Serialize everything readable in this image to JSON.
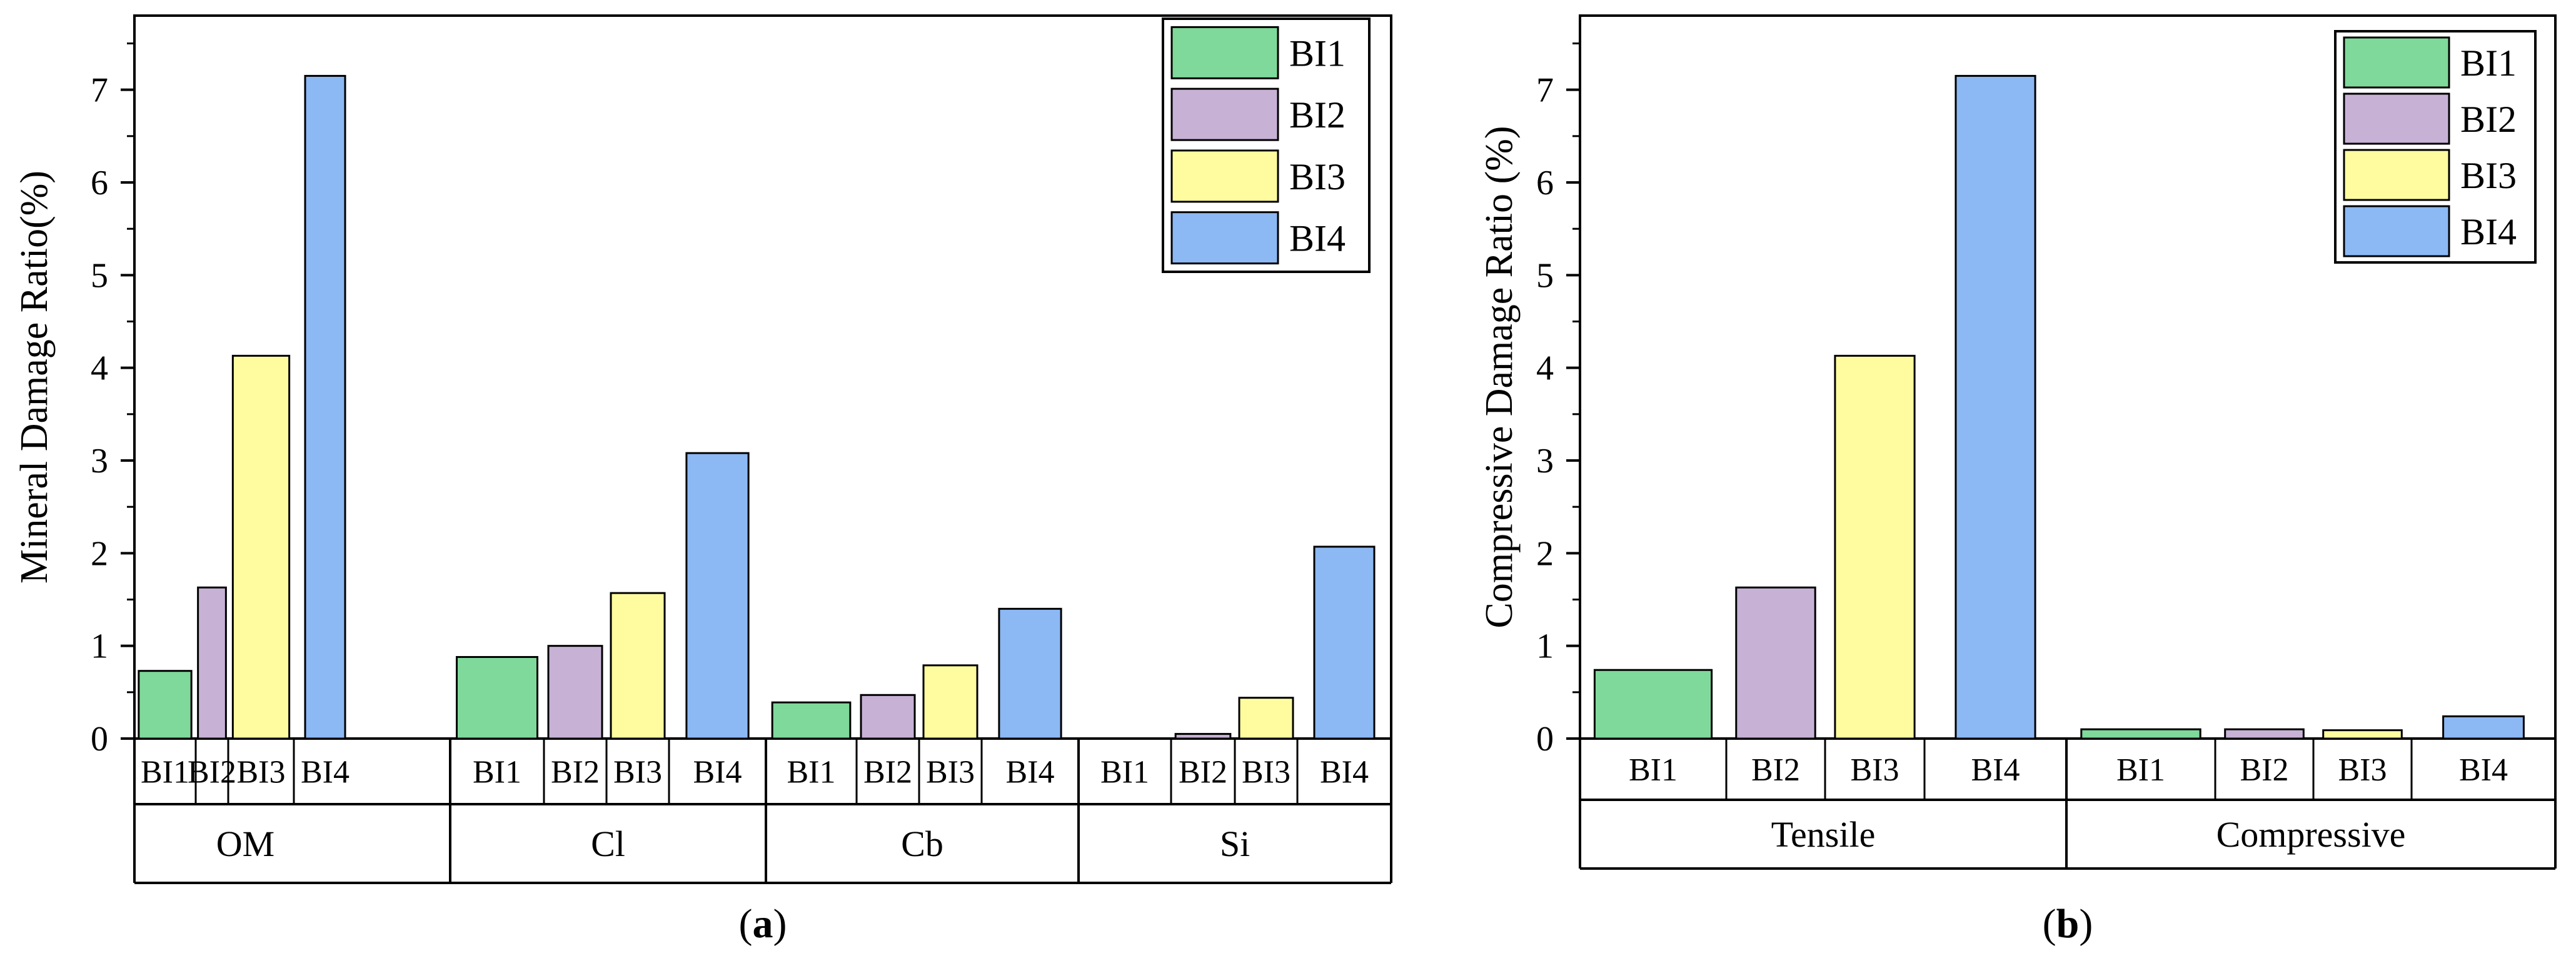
{
  "colors": {
    "BI1": "#7fd99a",
    "BI2": "#c7b2d6",
    "BI3": "#fffca0",
    "BI4": "#8cb8f4",
    "axis": "#000000"
  },
  "chart_data": [
    {
      "type": "bar",
      "panel_label": "(a)",
      "panel_letter": "a",
      "ylabel": "Mineral Damage Ratio(%)",
      "ylim": [
        0,
        7.8
      ],
      "yticks": [
        "0",
        "1",
        "2",
        "3",
        "4",
        "5",
        "6",
        "7"
      ],
      "legend": [
        "BI1",
        "BI2",
        "BI3",
        "BI4"
      ],
      "legend_position": "top-right",
      "groups": [
        {
          "name": "OM",
          "categories": [
            "BI1",
            "BI2",
            "BI3",
            "BI4"
          ],
          "values": [
            0.73,
            1.63,
            4.13,
            7.15
          ]
        },
        {
          "name": "Cl",
          "categories": [
            "BI1",
            "BI2",
            "BI3",
            "BI4"
          ],
          "values": [
            0.88,
            1.0,
            1.57,
            3.08
          ]
        },
        {
          "name": "Cb",
          "categories": [
            "BI1",
            "BI2",
            "BI3",
            "BI4"
          ],
          "values": [
            0.39,
            0.47,
            0.79,
            1.4
          ]
        },
        {
          "name": "Si",
          "categories": [
            "BI1",
            "BI2",
            "BI3",
            "BI4"
          ],
          "values": [
            0.0,
            0.05,
            0.44,
            2.07
          ]
        }
      ]
    },
    {
      "type": "bar",
      "panel_label": "(b)",
      "panel_letter": "b",
      "ylabel": "Compressive Damage Ratio (%)",
      "ylim": [
        0,
        7.8
      ],
      "yticks": [
        "0",
        "1",
        "2",
        "3",
        "4",
        "5",
        "6",
        "7"
      ],
      "legend": [
        "BI1",
        "BI2",
        "BI3",
        "BI4"
      ],
      "legend_position": "top-right",
      "groups": [
        {
          "name": "Tensile",
          "categories": [
            "BI1",
            "BI2",
            "BI3",
            "BI4"
          ],
          "values": [
            0.74,
            1.63,
            4.13,
            7.15
          ]
        },
        {
          "name": "Compressive",
          "categories": [
            "BI1",
            "BI2",
            "BI3",
            "BI4"
          ],
          "values": [
            0.1,
            0.1,
            0.09,
            0.24
          ]
        }
      ]
    }
  ]
}
